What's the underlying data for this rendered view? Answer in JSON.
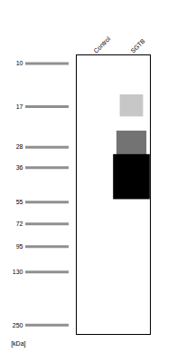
{
  "chart_data": {
    "type": "blot",
    "categories": [
      "Control",
      "SGTB"
    ],
    "ylabel": "[kDa]",
    "log": "y",
    "ylim": [
      280,
      9
    ],
    "yticks": [
      250,
      130,
      95,
      72,
      55,
      36,
      28,
      17,
      10
    ],
    "color": "#909090",
    "bands": [
      {
        "lane": "SGTB",
        "kda": 42,
        "intensity": 1.0,
        "x_width": 0.55,
        "kda_spread": 0.3
      },
      {
        "lane": "SGTB",
        "kda": 28,
        "intensity": 0.55,
        "x_width": 0.45,
        "kda_spread": 0.2
      },
      {
        "lane": "SGTB",
        "kda": 17,
        "intensity": 0.22,
        "x_width": 0.35,
        "kda_spread": 0.15
      }
    ]
  }
}
